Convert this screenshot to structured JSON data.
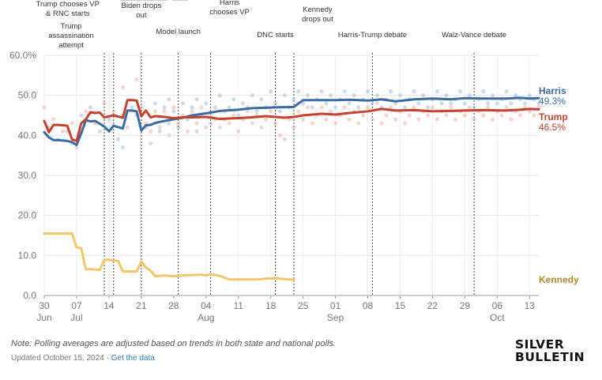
{
  "chart_data": {
    "type": "line",
    "title": "",
    "y_ticks": [
      "60.0%",
      "50.0",
      "40.0",
      "30.0",
      "20.0",
      "10.0",
      "0.0"
    ],
    "y_tick_values": [
      60,
      50,
      40,
      30,
      20,
      10,
      0
    ],
    "ylim": [
      0,
      60
    ],
    "x_range_days": [
      0,
      107
    ],
    "x_ticks": [
      {
        "day": 0,
        "label": "30"
      },
      {
        "day": 7,
        "label": "07"
      },
      {
        "day": 14,
        "label": "14"
      },
      {
        "day": 21,
        "label": "21"
      },
      {
        "day": 28,
        "label": "28"
      },
      {
        "day": 35,
        "label": "04"
      },
      {
        "day": 42,
        "label": "11"
      },
      {
        "day": 49,
        "label": "18"
      },
      {
        "day": 56,
        "label": "25"
      },
      {
        "day": 63,
        "label": "01"
      },
      {
        "day": 70,
        "label": "08"
      },
      {
        "day": 77,
        "label": "15"
      },
      {
        "day": 84,
        "label": "22"
      },
      {
        "day": 91,
        "label": "29"
      },
      {
        "day": 98,
        "label": "06"
      },
      {
        "day": 105,
        "label": "13"
      }
    ],
    "months": [
      {
        "day": 0,
        "label": "Jun"
      },
      {
        "day": 7,
        "label": "Jul"
      },
      {
        "day": 35,
        "label": "Aug"
      },
      {
        "day": 63,
        "label": "Sep"
      },
      {
        "day": 98,
        "label": "Oct"
      }
    ],
    "events": [
      {
        "day": 13,
        "lines": [
          "Trump",
          "assassination",
          "attempt"
        ]
      },
      {
        "day": 15,
        "lines": [
          "Trump chooses VP",
          "& RNC starts"
        ]
      },
      {
        "day": 21,
        "lines": [
          "Biden drops",
          "out"
        ]
      },
      {
        "day": 29,
        "lines": [
          "Model launch"
        ]
      },
      {
        "day": 36,
        "lines": [
          "Harris",
          "chooses VP"
        ]
      },
      {
        "day": 50,
        "lines": [
          "DNC starts"
        ]
      },
      {
        "day": 54,
        "lines": [
          "Kennedy",
          "drops out"
        ]
      },
      {
        "day": 71,
        "lines": [
          "Harris-Trump debate"
        ]
      },
      {
        "day": 93,
        "lines": [
          "Walz-Vance debate"
        ]
      }
    ],
    "series": [
      {
        "name": "Harris",
        "final_label": "49.3%",
        "color": "#3a6aa8",
        "dot_color": "#8fb0da",
        "days": [
          0,
          1,
          2,
          3,
          5,
          6,
          7,
          8,
          9,
          10,
          11,
          13,
          14,
          15,
          17,
          18,
          19,
          20,
          21,
          22,
          23,
          24,
          26,
          28,
          30,
          32,
          35,
          38,
          42,
          45,
          48,
          50,
          54,
          56,
          60,
          63,
          66,
          70,
          73,
          76,
          80,
          84,
          88,
          91,
          95,
          100,
          103,
          105,
          107
        ],
        "values": [
          40.8,
          39.5,
          38.8,
          38.8,
          38.6,
          38.3,
          37.6,
          40.5,
          43.8,
          43.5,
          43.6,
          42.2,
          41,
          42.4,
          41.7,
          46.2,
          46.2,
          46,
          41.2,
          42.5,
          42.6,
          43.1,
          43.6,
          44,
          44.4,
          45,
          45.5,
          46.1,
          46.4,
          46.8,
          46.9,
          47,
          47.1,
          48.8,
          48.8,
          48.8,
          48.9,
          48.7,
          49,
          48.5,
          49,
          49.2,
          49,
          49.3,
          49.2,
          49.2,
          49.4,
          49.2,
          49.3
        ]
      },
      {
        "name": "Trump",
        "final_label": "46.5%",
        "color": "#c8412e",
        "dot_color": "#eda293",
        "days": [
          0,
          1,
          2,
          3,
          5,
          6,
          7,
          8,
          9,
          10,
          11,
          12,
          13,
          15,
          17,
          18,
          19,
          20,
          21,
          22,
          23,
          24,
          26,
          28,
          30,
          32,
          35,
          38,
          42,
          45,
          48,
          50,
          52,
          54,
          56,
          60,
          63,
          66,
          70,
          73,
          76,
          80,
          84,
          88,
          91,
          95,
          100,
          103,
          105,
          107
        ],
        "values": [
          43.6,
          40.8,
          42.6,
          42.6,
          42.4,
          39,
          38.6,
          43,
          44,
          45.8,
          45.6,
          45.7,
          44.5,
          45,
          44.4,
          48.8,
          48.8,
          48.7,
          44.8,
          46.2,
          44.5,
          44.8,
          44.6,
          44.3,
          44.5,
          44.5,
          44.6,
          44.1,
          44.3,
          44.5,
          44.8,
          44.6,
          44.4,
          44.6,
          45,
          45.4,
          45.2,
          45.6,
          46,
          46.6,
          46.2,
          46.3,
          46,
          46.1,
          46.2,
          46.3,
          46.2,
          46.4,
          46.6,
          46.5
        ]
      },
      {
        "name": "Kennedy",
        "final_label": "",
        "color": "#f4c56a",
        "dot_color": "#f4c56a",
        "days": [
          0,
          1,
          2,
          3,
          4,
          5,
          6,
          7,
          8,
          9,
          10,
          12,
          13,
          14,
          16,
          17,
          20,
          21,
          22,
          23,
          24,
          26,
          28,
          30,
          34,
          35,
          36,
          38,
          40,
          44,
          46,
          48,
          50,
          52,
          53,
          54
        ],
        "values": [
          15.5,
          15.5,
          15.5,
          15.5,
          15.5,
          15.5,
          15.5,
          12,
          11.8,
          6.5,
          6.6,
          6.4,
          8.9,
          8.9,
          8.6,
          6,
          6,
          8.5,
          7,
          6.2,
          4.8,
          5,
          4.8,
          5,
          5.2,
          5,
          5.3,
          4.9,
          4,
          4,
          4,
          4.2,
          4.3,
          4.1,
          4,
          4
        ]
      }
    ],
    "poll_dots": {
      "Harris": [
        [
          1,
          42
        ],
        [
          3,
          39
        ],
        [
          5,
          41
        ],
        [
          6,
          38
        ],
        [
          8,
          45
        ],
        [
          10,
          47
        ],
        [
          12,
          41
        ],
        [
          14,
          44
        ],
        [
          16,
          39
        ],
        [
          17,
          37
        ],
        [
          19,
          47
        ],
        [
          20,
          45
        ],
        [
          22,
          42
        ],
        [
          23,
          38
        ],
        [
          24,
          48
        ],
        [
          25,
          41
        ],
        [
          26,
          47
        ],
        [
          27,
          43
        ],
        [
          27,
          49
        ],
        [
          28,
          46
        ],
        [
          29,
          42
        ],
        [
          30,
          48
        ],
        [
          31,
          44
        ],
        [
          32,
          47
        ],
        [
          33,
          41
        ],
        [
          33,
          49
        ],
        [
          34,
          45
        ],
        [
          35,
          48
        ],
        [
          36,
          43
        ],
        [
          37,
          47
        ],
        [
          38,
          50
        ],
        [
          39,
          44
        ],
        [
          40,
          47
        ],
        [
          41,
          49
        ],
        [
          42,
          45
        ],
        [
          43,
          48
        ],
        [
          44,
          47
        ],
        [
          45,
          50
        ],
        [
          46,
          46
        ],
        [
          47,
          49
        ],
        [
          48,
          47
        ],
        [
          49,
          51
        ],
        [
          50,
          48
        ],
        [
          51,
          46
        ],
        [
          52,
          50
        ],
        [
          53,
          47
        ],
        [
          54,
          49
        ],
        [
          55,
          51
        ],
        [
          56,
          48
        ],
        [
          57,
          50
        ],
        [
          58,
          47
        ],
        [
          59,
          49
        ],
        [
          60,
          51
        ],
        [
          61,
          48
        ],
        [
          62,
          50
        ],
        [
          63,
          47
        ],
        [
          64,
          49
        ],
        [
          65,
          51
        ],
        [
          66,
          48
        ],
        [
          67,
          50
        ],
        [
          68,
          47
        ],
        [
          69,
          49
        ],
        [
          70,
          51
        ],
        [
          71,
          48
        ],
        [
          72,
          50
        ],
        [
          73,
          47
        ],
        [
          74,
          49
        ],
        [
          75,
          51
        ],
        [
          76,
          48
        ],
        [
          77,
          50
        ],
        [
          78,
          47
        ],
        [
          79,
          49
        ],
        [
          80,
          51
        ],
        [
          81,
          48
        ],
        [
          82,
          50
        ],
        [
          83,
          47
        ],
        [
          84,
          49
        ],
        [
          85,
          51
        ],
        [
          86,
          48
        ],
        [
          87,
          50
        ],
        [
          88,
          48
        ],
        [
          89,
          49
        ],
        [
          90,
          51
        ],
        [
          91,
          48
        ],
        [
          92,
          50
        ],
        [
          93,
          47
        ],
        [
          94,
          49
        ],
        [
          95,
          51
        ],
        [
          96,
          48
        ],
        [
          97,
          50
        ],
        [
          98,
          48
        ],
        [
          99,
          49
        ],
        [
          100,
          51
        ],
        [
          101,
          48
        ],
        [
          102,
          50
        ],
        [
          103,
          49
        ],
        [
          104,
          48
        ],
        [
          105,
          50
        ],
        [
          106,
          49
        ],
        [
          107,
          48
        ]
      ],
      "Trump": [
        [
          0,
          47
        ],
        [
          2,
          44
        ],
        [
          4,
          41
        ],
        [
          6,
          43
        ],
        [
          7,
          37
        ],
        [
          9,
          46
        ],
        [
          11,
          43
        ],
        [
          13,
          48
        ],
        [
          15,
          46
        ],
        [
          17,
          52
        ],
        [
          18,
          42
        ],
        [
          20,
          54
        ],
        [
          21,
          47
        ],
        [
          22,
          43
        ],
        [
          23,
          41
        ],
        [
          24,
          46
        ],
        [
          25,
          42
        ],
        [
          26,
          46
        ],
        [
          27,
          40
        ],
        [
          28,
          47
        ],
        [
          29,
          43
        ],
        [
          30,
          45
        ],
        [
          31,
          41
        ],
        [
          32,
          46
        ],
        [
          33,
          43
        ],
        [
          34,
          47
        ],
        [
          35,
          42
        ],
        [
          36,
          45
        ],
        [
          37,
          44
        ],
        [
          38,
          42
        ],
        [
          39,
          46
        ],
        [
          40,
          43
        ],
        [
          41,
          45
        ],
        [
          42,
          41
        ],
        [
          43,
          44
        ],
        [
          44,
          46
        ],
        [
          45,
          43
        ],
        [
          46,
          45
        ],
        [
          47,
          42
        ],
        [
          48,
          44
        ],
        [
          49,
          46
        ],
        [
          50,
          43
        ],
        [
          51,
          40
        ],
        [
          52,
          39
        ],
        [
          53,
          44
        ],
        [
          54,
          42
        ],
        [
          55,
          46
        ],
        [
          56,
          44
        ],
        [
          57,
          47
        ],
        [
          58,
          43
        ],
        [
          59,
          45
        ],
        [
          60,
          47
        ],
        [
          61,
          44
        ],
        [
          62,
          46
        ],
        [
          63,
          43
        ],
        [
          64,
          45
        ],
        [
          65,
          47
        ],
        [
          66,
          44
        ],
        [
          67,
          46
        ],
        [
          68,
          43
        ],
        [
          69,
          45
        ],
        [
          70,
          47
        ],
        [
          71,
          44
        ],
        [
          72,
          48
        ],
        [
          73,
          43
        ],
        [
          74,
          45
        ],
        [
          75,
          47
        ],
        [
          76,
          44
        ],
        [
          77,
          46
        ],
        [
          78,
          43
        ],
        [
          79,
          45
        ],
        [
          80,
          47
        ],
        [
          81,
          44
        ],
        [
          82,
          46
        ],
        [
          83,
          45
        ],
        [
          84,
          47
        ],
        [
          85,
          44
        ],
        [
          86,
          46
        ],
        [
          87,
          45
        ],
        [
          88,
          47
        ],
        [
          89,
          44
        ],
        [
          90,
          46
        ],
        [
          91,
          45
        ],
        [
          92,
          47
        ],
        [
          93,
          44
        ],
        [
          94,
          46
        ],
        [
          95,
          45
        ],
        [
          96,
          47
        ],
        [
          97,
          44
        ],
        [
          98,
          46
        ],
        [
          99,
          45
        ],
        [
          100,
          47
        ],
        [
          101,
          44
        ],
        [
          102,
          46
        ],
        [
          103,
          45
        ],
        [
          104,
          47
        ],
        [
          105,
          46
        ],
        [
          106,
          45
        ],
        [
          107,
          47
        ]
      ],
      "Kennedy": []
    }
  },
  "footer": {
    "note": "Note: Polling averages are adjusted based on trends in both state and national polls.",
    "updated": "Updated October 15, 2024 · ",
    "link": "Get the data",
    "logo_line1": "SILVER",
    "logo_line2": "BULLETIN"
  }
}
